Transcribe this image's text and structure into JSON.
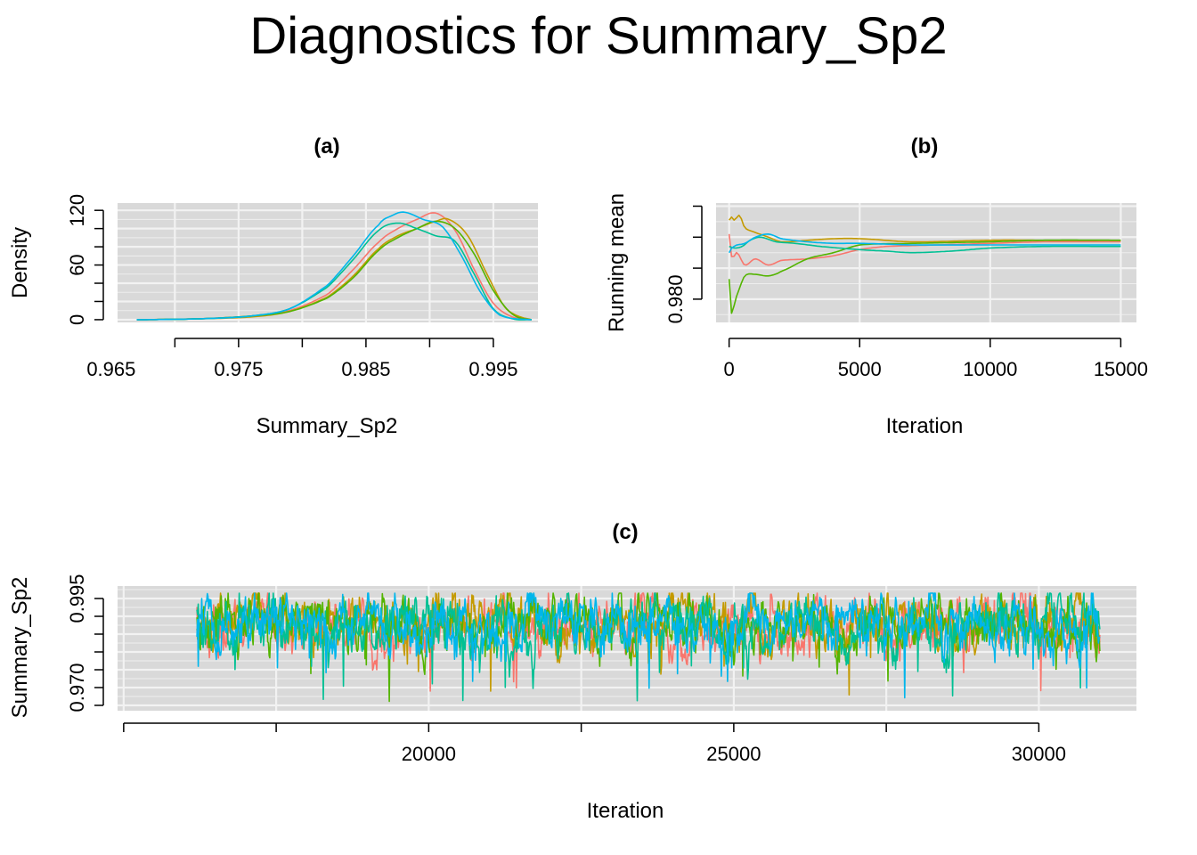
{
  "title": "Diagnostics for Summary_Sp2",
  "chart_data": [
    {
      "panel": "(a)",
      "type": "line",
      "xlabel": "Summary_Sp2",
      "ylabel": "Density",
      "xlim": [
        0.9655,
        0.9985
      ],
      "ylim": [
        -3,
        128
      ],
      "xticks": [
        0.965,
        0.97,
        0.975,
        0.98,
        0.985,
        0.99,
        0.995
      ],
      "xtick_labels": [
        "0.965",
        "0.975",
        "0.985",
        "0.995"
      ],
      "xtick_label_values": [
        0.965,
        0.975,
        0.985,
        0.995
      ],
      "yticks": [
        0,
        20,
        40,
        60,
        80,
        100,
        120
      ],
      "ytick_labels": [
        "0",
        "60",
        "120"
      ],
      "ytick_label_values": [
        0,
        60,
        120
      ],
      "grid": true,
      "series": [
        {
          "color": "#F8766D",
          "x": [
            0.967,
            0.972,
            0.976,
            0.979,
            0.982,
            0.984,
            0.986,
            0.9875,
            0.989,
            0.9905,
            0.992,
            0.9935,
            0.995,
            0.9965,
            0.998
          ],
          "y": [
            0,
            1,
            4,
            10,
            28,
            55,
            85,
            100,
            110,
            117,
            98,
            55,
            18,
            3,
            0
          ]
        },
        {
          "color": "#C49A00",
          "x": [
            0.967,
            0.972,
            0.976,
            0.979,
            0.982,
            0.984,
            0.986,
            0.9875,
            0.989,
            0.9905,
            0.9915,
            0.993,
            0.9945,
            0.996,
            0.998
          ],
          "y": [
            0,
            1,
            3,
            9,
            25,
            48,
            78,
            92,
            100,
            108,
            110,
            92,
            50,
            12,
            0
          ]
        },
        {
          "color": "#53B400",
          "x": [
            0.967,
            0.972,
            0.976,
            0.979,
            0.982,
            0.984,
            0.986,
            0.9875,
            0.989,
            0.9905,
            0.992,
            0.9935,
            0.995,
            0.9965,
            0.998
          ],
          "y": [
            0,
            1,
            4,
            9,
            24,
            46,
            76,
            90,
            100,
            108,
            100,
            72,
            32,
            6,
            0
          ]
        },
        {
          "color": "#00C094",
          "x": [
            0.967,
            0.972,
            0.976,
            0.979,
            0.982,
            0.984,
            0.986,
            0.9875,
            0.989,
            0.9905,
            0.992,
            0.9935,
            0.995,
            0.9965,
            0.998
          ],
          "y": [
            0,
            1,
            4,
            12,
            36,
            66,
            98,
            106,
            100,
            92,
            86,
            50,
            12,
            1,
            0
          ]
        },
        {
          "color": "#00B6EB",
          "x": [
            0.967,
            0.972,
            0.976,
            0.979,
            0.982,
            0.984,
            0.986,
            0.987,
            0.988,
            0.9895,
            0.991,
            0.9925,
            0.994,
            0.9955,
            0.998
          ],
          "y": [
            0,
            1,
            4,
            12,
            38,
            70,
            104,
            114,
            118,
            110,
            102,
            70,
            30,
            5,
            0
          ]
        }
      ]
    },
    {
      "panel": "(b)",
      "type": "line",
      "xlabel": "Iteration",
      "ylabel": "Running mean",
      "xlim": [
        -500,
        15600
      ],
      "ylim": [
        0.9785,
        0.9862
      ],
      "xticks": [
        0,
        5000,
        10000,
        15000
      ],
      "xtick_labels": [
        "0",
        "5000",
        "10000",
        "15000"
      ],
      "yticks": [
        0.98,
        0.982,
        0.984,
        0.986
      ],
      "ytick_labels": [
        "0.980"
      ],
      "ytick_label_values": [
        0.98
      ],
      "grid": true,
      "series": [
        {
          "color": "#F8766D",
          "x": [
            0,
            100,
            300,
            600,
            1000,
            1500,
            2000,
            3000,
            4000,
            5000,
            6000,
            8000,
            10000,
            12000,
            15000
          ],
          "y": [
            0.9842,
            0.9827,
            0.983,
            0.9822,
            0.9826,
            0.9822,
            0.9825,
            0.9826,
            0.9828,
            0.9832,
            0.9834,
            0.9835,
            0.9836,
            0.9837,
            0.9837
          ]
        },
        {
          "color": "#C49A00",
          "x": [
            0,
            100,
            200,
            400,
            600,
            1000,
            1500,
            2000,
            3000,
            4000,
            5000,
            7000,
            10000,
            12000,
            15000
          ],
          "y": [
            0.9851,
            0.9853,
            0.9851,
            0.9854,
            0.9846,
            0.9843,
            0.984,
            0.9837,
            0.9838,
            0.9839,
            0.9839,
            0.9837,
            0.9838,
            0.9838,
            0.9838
          ]
        },
        {
          "color": "#53B400",
          "x": [
            0,
            50,
            150,
            300,
            600,
            1000,
            1500,
            2000,
            3000,
            4000,
            5000,
            7000,
            10000,
            12000,
            15000
          ],
          "y": [
            0.9813,
            0.9792,
            0.9794,
            0.9803,
            0.9815,
            0.9816,
            0.9815,
            0.9818,
            0.9826,
            0.983,
            0.9835,
            0.9836,
            0.9837,
            0.9838,
            0.9838
          ]
        },
        {
          "color": "#00C094",
          "x": [
            0,
            200,
            500,
            800,
            1200,
            1800,
            2500,
            3500,
            5000,
            6000,
            7000,
            8500,
            10000,
            12000,
            15000
          ],
          "y": [
            0.9834,
            0.9833,
            0.9834,
            0.9838,
            0.984,
            0.9837,
            0.9836,
            0.9834,
            0.9832,
            0.9831,
            0.983,
            0.9831,
            0.9833,
            0.9834,
            0.9834
          ]
        },
        {
          "color": "#00B6EB",
          "x": [
            0,
            100,
            300,
            600,
            1000,
            1500,
            2000,
            3000,
            4000,
            5000,
            7000,
            10000,
            12000,
            15000
          ],
          "y": [
            0.983,
            0.9833,
            0.9835,
            0.9836,
            0.984,
            0.9842,
            0.9839,
            0.9837,
            0.9836,
            0.9836,
            0.9835,
            0.9835,
            0.9835,
            0.9835
          ]
        }
      ]
    },
    {
      "panel": "(c)",
      "type": "line",
      "xlabel": "Iteration",
      "ylabel": "Summary_Sp2",
      "xlim": [
        14900,
        31600
      ],
      "ylim": [
        0.9635,
        0.9985
      ],
      "xticks": [
        15000,
        17500,
        20000,
        22500,
        25000,
        27500,
        30000
      ],
      "xtick_labels": [
        "20000",
        "25000",
        "30000"
      ],
      "xtick_label_values": [
        20000,
        25000,
        30000
      ],
      "yticks": [
        0.965,
        0.97,
        0.975,
        0.98,
        0.985,
        0.99,
        0.995
      ],
      "ytick_labels": [
        "0.970",
        "0.995"
      ],
      "ytick_label_values": [
        0.97,
        0.995
      ],
      "grid": true,
      "x_start": 16200,
      "x_end": 31000,
      "series": [
        {
          "color": "#F8766D",
          "center": 0.9875,
          "spread": 0.0045
        },
        {
          "color": "#C49A00",
          "center": 0.988,
          "spread": 0.0045
        },
        {
          "color": "#53B400",
          "center": 0.9878,
          "spread": 0.0045
        },
        {
          "color": "#00C094",
          "center": 0.9872,
          "spread": 0.0048
        },
        {
          "color": "#00B6EB",
          "center": 0.9874,
          "spread": 0.0045
        }
      ]
    }
  ]
}
